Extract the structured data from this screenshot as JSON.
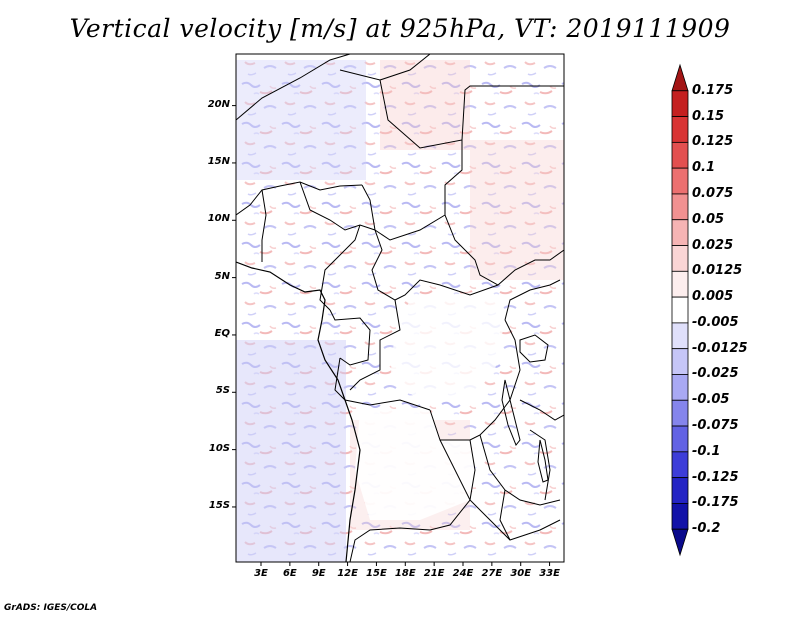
{
  "title": "Vertical velocity [m/s] at 925hPa, VT: 2019111909",
  "credit": "GrADS: IGES/COLA",
  "map": {
    "lat_labels": [
      "20N",
      "15N",
      "10N",
      "5N",
      "EQ",
      "5S",
      "10S",
      "15S"
    ],
    "lat_values": [
      20,
      15,
      10,
      5,
      0,
      -5,
      -10,
      -15
    ],
    "lon_labels": [
      "3E",
      "6E",
      "9E",
      "12E",
      "15E",
      "18E",
      "21E",
      "24E",
      "27E",
      "30E",
      "33E"
    ],
    "lon_values": [
      3,
      6,
      9,
      12,
      15,
      18,
      21,
      24,
      27,
      30,
      33
    ],
    "lon_range": [
      0.4,
      34.5
    ],
    "lat_range": [
      -19.8,
      24.5
    ]
  },
  "colorbar": {
    "labels": [
      "0.175",
      "0.15",
      "0.125",
      "0.1",
      "0.075",
      "0.05",
      "0.025",
      "0.0125",
      "0.005",
      "-0.005",
      "-0.0125",
      "-0.025",
      "-0.05",
      "-0.075",
      "-0.1",
      "-0.125",
      "-0.175",
      "-0.2"
    ],
    "colors": [
      "#a31515",
      "#c42020",
      "#d83434",
      "#e35050",
      "#ec7070",
      "#f19191",
      "#f6b4b4",
      "#fad5d5",
      "#fdeeee",
      "#ffffff",
      "#e0e0fb",
      "#c6c6f7",
      "#a9a9f3",
      "#8585ec",
      "#6262e4",
      "#3d3dd8",
      "#2424c4",
      "#1212a8",
      "#0a0a8c"
    ]
  }
}
